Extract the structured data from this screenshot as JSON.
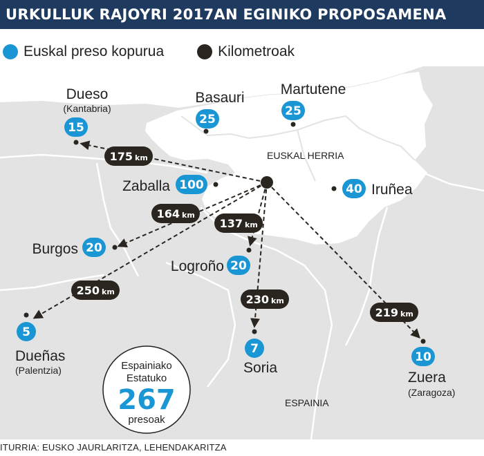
{
  "title": "URKULLUK RAJOYRI 2017AN EGINIKO PROPOSAMENA",
  "legend": {
    "prisoners_label": "Euskal preso kopurua",
    "km_label": "Kilometroak"
  },
  "colors": {
    "prisoners": "#1b96d4",
    "distance": "#2b2520",
    "land": "#e3e3e3",
    "euskal_herria": "#ffffff",
    "title_bg": "#1e3a5f"
  },
  "regions": {
    "euskal_herria": "EUSKAL HERRIA",
    "espainia": "ESPAINIA"
  },
  "places": [
    {
      "id": "dueso",
      "name": "Dueso",
      "subname": "(Kantabria)",
      "prisoners": "15",
      "km": "175"
    },
    {
      "id": "basauri",
      "name": "Basauri",
      "subname": "",
      "prisoners": "25",
      "km": ""
    },
    {
      "id": "martutene",
      "name": "Martutene",
      "subname": "",
      "prisoners": "25",
      "km": ""
    },
    {
      "id": "zaballa",
      "name": "Zaballa",
      "subname": "",
      "prisoners": "100",
      "km": ""
    },
    {
      "id": "iruna",
      "name": "Iruñea",
      "subname": "",
      "prisoners": "40",
      "km": ""
    },
    {
      "id": "burgos",
      "name": "Burgos",
      "subname": "",
      "prisoners": "20",
      "km": "164"
    },
    {
      "id": "logrono",
      "name": "Logroño",
      "subname": "",
      "prisoners": "20",
      "km": "137"
    },
    {
      "id": "duenas",
      "name": "Dueñas",
      "subname": "(Palentzia)",
      "prisoners": "5",
      "km": "250"
    },
    {
      "id": "soria",
      "name": "Soria",
      "subname": "",
      "prisoners": "7",
      "km": "230"
    },
    {
      "id": "zuera",
      "name": "Zuera",
      "subname": "(Zaragoza)",
      "prisoners": "10",
      "km": "219"
    }
  ],
  "km_unit": "km",
  "total": {
    "line1": "Espainiako",
    "line2": "Estatuko",
    "number": "267",
    "line3": "presoak"
  },
  "source": "ITURRIA: EUSKO JAURLARITZA, LEHENDAKARITZA"
}
